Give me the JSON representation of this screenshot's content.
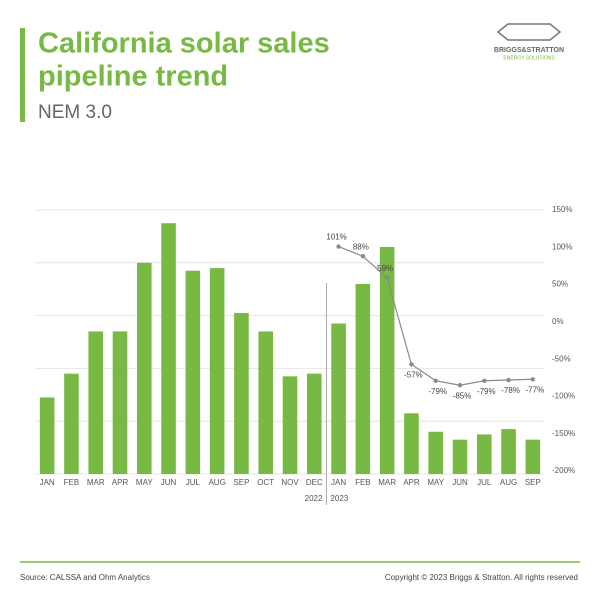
{
  "header": {
    "title_lines": [
      "California solar sales",
      "pipeline trend"
    ],
    "subtitle": "NEM 3.0",
    "logo": {
      "brand": "BRIGGS&STRATTON",
      "division": "ENERGY SOLUTIONS"
    }
  },
  "footer": {
    "source": "Source: CALSSA and Ohm Analytics",
    "copyright": "Copyright © 2023 Briggs & Stratton. All rights reserved"
  },
  "chart_data": {
    "type": "bar",
    "categories": [
      "JAN",
      "FEB",
      "MAR",
      "APR",
      "MAY",
      "JUN",
      "JUL",
      "AUG",
      "SEP",
      "OCT",
      "NOV",
      "DEC",
      "JAN",
      "FEB",
      "MAR",
      "APR",
      "MAY",
      "JUN",
      "JUL",
      "AUG",
      "SEP"
    ],
    "x_group_labels": [
      "2022",
      "2023"
    ],
    "values": [
      29,
      38,
      54,
      54,
      80,
      95,
      77,
      78,
      61,
      54,
      37,
      38,
      57,
      72,
      86,
      23,
      16,
      13,
      15,
      17,
      13
    ],
    "color": "#77b943",
    "ylim": [
      0,
      100
    ],
    "grid": true,
    "series": [
      {
        "type": "line",
        "axis": "y2",
        "color": "#8a8a8a",
        "values": [
          null,
          null,
          null,
          null,
          null,
          null,
          null,
          null,
          null,
          null,
          null,
          null,
          101,
          88,
          59,
          -57,
          -79,
          -85,
          -79,
          -78,
          -77
        ],
        "value_labels": [
          null,
          null,
          null,
          null,
          null,
          null,
          null,
          null,
          null,
          null,
          null,
          null,
          "101%",
          "88%",
          "59%",
          "-57%",
          "-79%",
          "-85%",
          "-79%",
          "-78%",
          "-77%"
        ]
      }
    ],
    "y2lim": [
      -200,
      150
    ],
    "y2ticks": [
      {
        "value": 150,
        "label": "150%"
      },
      {
        "value": 100,
        "label": "100%"
      },
      {
        "value": 50,
        "label": "50%"
      },
      {
        "value": 0,
        "label": "0%"
      },
      {
        "value": -50,
        "label": "-50%"
      },
      {
        "value": -100,
        "label": "-100%"
      },
      {
        "value": -150,
        "label": "-150%"
      },
      {
        "value": -200,
        "label": "-200%"
      }
    ]
  }
}
